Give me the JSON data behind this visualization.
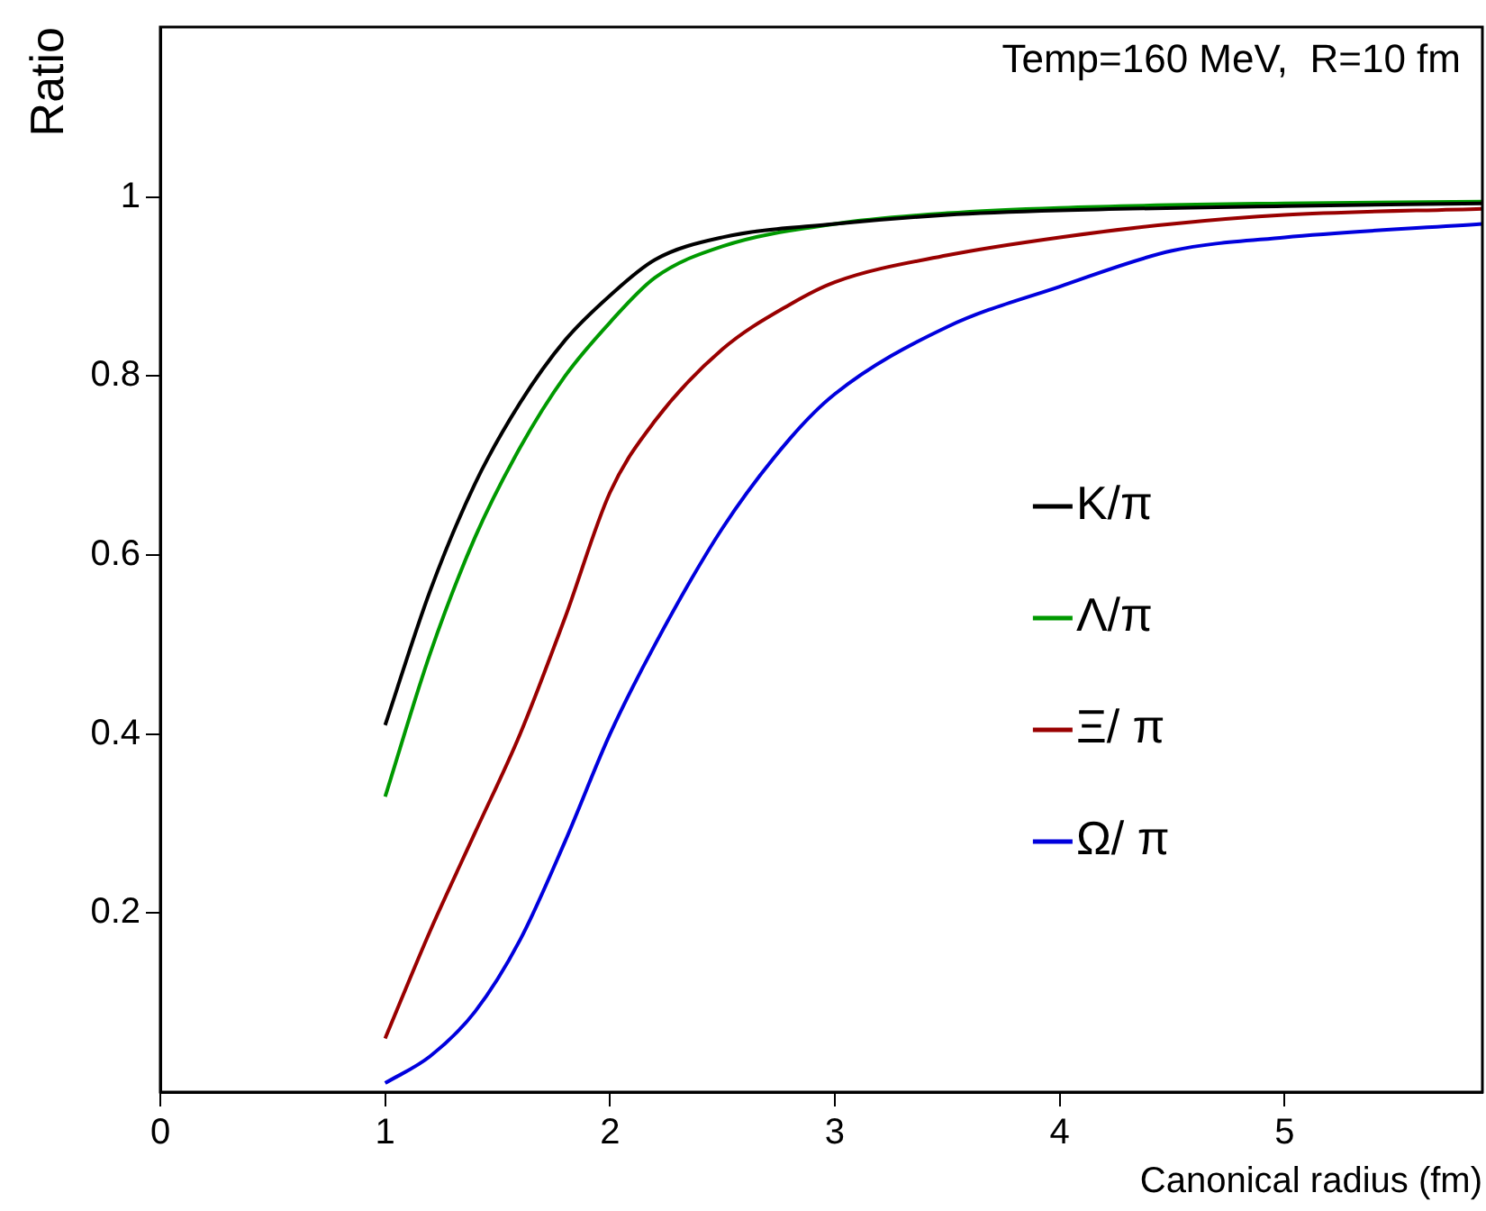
{
  "chart_data": {
    "type": "line",
    "xlabel": "Canonical radius (fm)",
    "ylabel": "Ratio",
    "annotations": [
      "Temp=160 MeV,  R=10 fm"
    ],
    "xlim": [
      0,
      5.88
    ],
    "xticks": [
      0,
      1,
      2,
      3,
      4,
      5
    ],
    "ylim": [
      0,
      1.19
    ],
    "yticks": [
      0.2,
      0.4,
      0.6,
      0.8,
      1
    ],
    "grid": false,
    "legend": "right",
    "marker": "none",
    "line_style": "solid",
    "series": [
      {
        "name": "K/π",
        "color": "#000000",
        "x": [
          1,
          1.2,
          1.4,
          1.6,
          1.8,
          2.0,
          2.2,
          2.5,
          3,
          3.5,
          4,
          5,
          5.88
        ],
        "values": [
          0.41,
          0.56,
          0.68,
          0.77,
          0.84,
          0.89,
          0.93,
          0.955,
          0.97,
          0.98,
          0.985,
          0.99,
          0.993
        ]
      },
      {
        "name": "Λ/π",
        "color": "#009900",
        "x": [
          1,
          1.2,
          1.4,
          1.6,
          1.8,
          2.0,
          2.2,
          2.5,
          3,
          3.5,
          4,
          5,
          5.88
        ],
        "values": [
          0.33,
          0.49,
          0.62,
          0.72,
          0.8,
          0.86,
          0.91,
          0.945,
          0.97,
          0.982,
          0.988,
          0.993,
          0.995
        ]
      },
      {
        "name": "Ξ/ π",
        "color": "#990000",
        "x": [
          1,
          1.2,
          1.4,
          1.6,
          1.8,
          2.0,
          2.2,
          2.5,
          2.8,
          3,
          3.5,
          4,
          4.5,
          5,
          5.88
        ],
        "values": [
          0.06,
          0.18,
          0.29,
          0.4,
          0.53,
          0.67,
          0.75,
          0.83,
          0.88,
          0.905,
          0.935,
          0.955,
          0.97,
          0.98,
          0.987
        ]
      },
      {
        "name": "Ω/ π",
        "color": "#0000dd",
        "x": [
          1,
          1.2,
          1.4,
          1.6,
          1.8,
          2.0,
          2.2,
          2.5,
          2.8,
          3,
          3.5,
          4,
          4.5,
          5,
          5.88
        ],
        "values": [
          0.01,
          0.04,
          0.09,
          0.17,
          0.28,
          0.4,
          0.5,
          0.63,
          0.73,
          0.78,
          0.855,
          0.9,
          0.94,
          0.955,
          0.97
        ]
      }
    ]
  }
}
